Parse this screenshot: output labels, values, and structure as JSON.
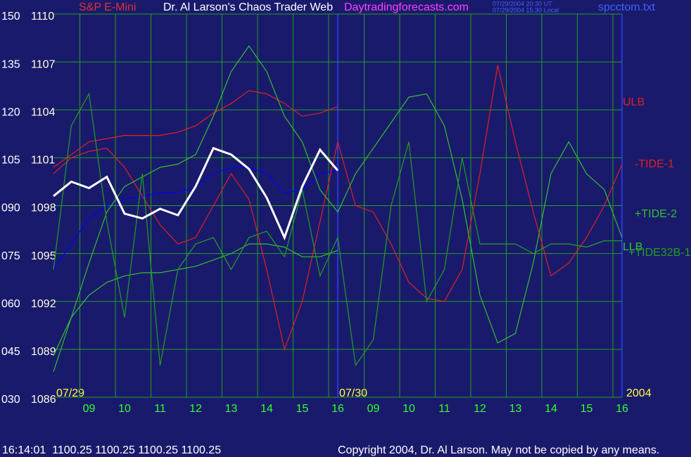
{
  "chart_data": {
    "type": "line",
    "symbol": "S&P E-Mini",
    "title": "Dr. Al Larson's Chaos Trader Web",
    "website": "Daytradingforecasts.com",
    "timestamps": [
      "07/29/2004 20:30 UT",
      "07/29/2004 15:30 Local"
    ],
    "filename": "spcctom.txt",
    "date_labels": [
      "07/29",
      "07/30",
      "2004"
    ],
    "status": "16:14:01  1100.25 1100.25 1100.25 1100.25",
    "copyright": "Copyright 2004, Dr. Al Larson. May not be copied by any means.",
    "x": [
      8,
      8.5,
      9,
      9.5,
      10,
      10.5,
      11,
      11.5,
      12,
      12.5,
      13,
      13.5,
      14,
      14.5,
      15,
      15.5,
      16,
      16.5,
      17,
      17.5,
      18,
      18.5,
      19,
      19.5,
      20,
      20.5,
      21,
      21.5,
      22,
      22.5,
      23,
      23.5,
      24
    ],
    "xlim": [
      8,
      24
    ],
    "xticks": [
      {
        "value": 9,
        "label": "09"
      },
      10,
      11,
      12,
      13,
      14,
      15,
      16,
      {
        "value": 17,
        "label": "09"
      },
      {
        "value": 18,
        "label": "10"
      },
      {
        "value": 19,
        "label": "11"
      },
      {
        "value": 20,
        "label": "12"
      },
      {
        "value": 21,
        "label": "13"
      },
      {
        "value": 22,
        "label": "14"
      },
      {
        "value": 23,
        "label": "15"
      },
      {
        "value": 24,
        "label": "16"
      }
    ],
    "ylim": [
      30,
      150
    ],
    "yticks": [
      {
        "value": 30,
        "label": "030"
      },
      {
        "value": 45,
        "label": "045"
      },
      {
        "value": 60,
        "label": "060"
      },
      {
        "value": 75,
        "label": "075"
      },
      {
        "value": 90,
        "label": "090"
      },
      105,
      120,
      135,
      150
    ],
    "y2lim": [
      1086,
      1110
    ],
    "y2ticks": [
      1086,
      1089,
      1092,
      1095,
      1098,
      1101,
      1104,
      1107,
      1110
    ],
    "grid": true,
    "series": [
      {
        "color": "#0000ff",
        "values": [
          70,
          78,
          86,
          90,
          92,
          93,
          94,
          94,
          96,
          100,
          102,
          102,
          100,
          94,
          95,
          100,
          101,
          null,
          null,
          null,
          null,
          null,
          null,
          null,
          null,
          null,
          null,
          null,
          null,
          null,
          null,
          null,
          null
        ]
      },
      {
        "name": "ULB",
        "color": "#e02020",
        "values": [
          102,
          106,
          110,
          111,
          112,
          112,
          112,
          113,
          115,
          119,
          122,
          126,
          125,
          122,
          118,
          119,
          121,
          null,
          null,
          null,
          null,
          null,
          null,
          null,
          null,
          null,
          null,
          null,
          null,
          null,
          null,
          null,
          null
        ]
      },
      {
        "name": "-TIDE-1",
        "color": "#e02020",
        "values": [
          100,
          105,
          107,
          108,
          102,
          93,
          84,
          78,
          80,
          90,
          100,
          92,
          70,
          45,
          60,
          85,
          110,
          90,
          88,
          78,
          66,
          61,
          60,
          70,
          100,
          134,
          110,
          88,
          68,
          72,
          80,
          90,
          103
        ]
      },
      {
        "name": "+TIDE-2",
        "color": "#30c030",
        "values": [
          38,
          55,
          72,
          88,
          96,
          99,
          102,
          103,
          106,
          118,
          132,
          140,
          132,
          118,
          110,
          95,
          88,
          100,
          108,
          116,
          124,
          125,
          115,
          92,
          62,
          47,
          50,
          72,
          100,
          110,
          100,
          95,
          80
        ]
      },
      {
        "name": "LLB",
        "color": "#30c030",
        "values": [
          43,
          55,
          62,
          66,
          68,
          69,
          69,
          70,
          71,
          73,
          75,
          78,
          78,
          77,
          74,
          74,
          76,
          null,
          null,
          null,
          null,
          null,
          null,
          null,
          null,
          null,
          null,
          null,
          null,
          null,
          null,
          null,
          null
        ]
      },
      {
        "name": "+TIDE32B-1",
        "color": "#20a020",
        "values": [
          70,
          115,
          125,
          85,
          55,
          100,
          40,
          70,
          78,
          80,
          70,
          80,
          82,
          74,
          95,
          68,
          80,
          40,
          48,
          90,
          110,
          60,
          70,
          105,
          78,
          78,
          78,
          75,
          78,
          78,
          77,
          79,
          79
        ]
      },
      {
        "color": "#ffffff",
        "axis": "y2",
        "values": [
          1098.6,
          1099.5,
          1099.1,
          1099.8,
          1097.5,
          1097.2,
          1097.8,
          1097.4,
          1099.2,
          1101.6,
          1101.2,
          1100.3,
          1098.5,
          1096,
          1099.2,
          1101.5,
          1100.2,
          null,
          null,
          null,
          null,
          null,
          null,
          null,
          null,
          null,
          null,
          null,
          null,
          null,
          null,
          null,
          null
        ]
      }
    ]
  }
}
